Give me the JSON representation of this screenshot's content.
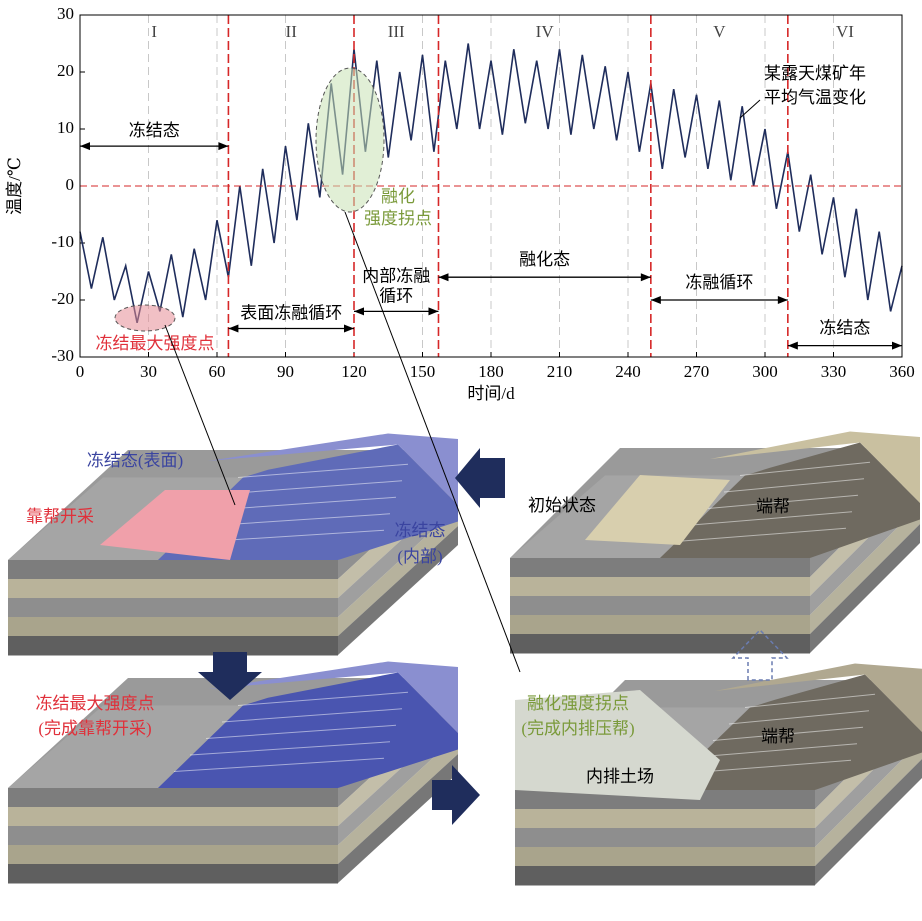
{
  "chart_data": {
    "type": "line",
    "y_label": "温度/℃",
    "x_label": "时间/d",
    "x": [
      0,
      5,
      10,
      15,
      20,
      25,
      30,
      35,
      40,
      45,
      50,
      55,
      60,
      65,
      70,
      75,
      80,
      85,
      90,
      95,
      100,
      105,
      110,
      115,
      120,
      125,
      130,
      135,
      140,
      145,
      150,
      155,
      160,
      165,
      170,
      175,
      180,
      185,
      190,
      195,
      200,
      205,
      210,
      215,
      220,
      225,
      230,
      235,
      240,
      245,
      250,
      255,
      260,
      265,
      270,
      275,
      280,
      285,
      290,
      295,
      300,
      305,
      310,
      315,
      320,
      325,
      330,
      335,
      340,
      345,
      350,
      355,
      360
    ],
    "series": [
      {
        "color": "#1f2d5c",
        "values": [
          -8,
          -18,
          -9,
          -20,
          -14,
          -24,
          -15,
          -22,
          -12,
          -23,
          -11,
          -20,
          -6,
          -16,
          0,
          -14,
          3,
          -10,
          7,
          -6,
          11,
          -2,
          18,
          2,
          24,
          6,
          22,
          5,
          20,
          8,
          23,
          6,
          22,
          10,
          25,
          10,
          22,
          9,
          24,
          11,
          22,
          10,
          24,
          9,
          23,
          10,
          21,
          8,
          20,
          6,
          18,
          3,
          17,
          5,
          16,
          3,
          15,
          1,
          14,
          0,
          10,
          -4,
          6,
          -8,
          2,
          -12,
          -2,
          -16,
          -4,
          -20,
          -8,
          -22,
          -14
        ]
      }
    ],
    "xlim": [
      0,
      360
    ],
    "ylim": [
      -30,
      30
    ],
    "xticks": [
      0,
      30,
      60,
      90,
      120,
      150,
      180,
      210,
      240,
      270,
      300,
      330,
      360
    ],
    "yticks": [
      -30,
      -20,
      -10,
      0,
      10,
      20,
      30
    ],
    "grid": "x",
    "reference_y": 0,
    "phase_boundaries": [
      65,
      120,
      157,
      250,
      310
    ],
    "phases": [
      "I",
      "II",
      "III",
      "IV",
      "V",
      "VI"
    ],
    "regions": [
      [
        "冻结态"
      ],
      [
        "表面冻融循环"
      ],
      [
        "内部冻融",
        "循环"
      ],
      [
        "融化态"
      ],
      [
        "冻融循环"
      ],
      [
        "冻结态"
      ]
    ],
    "annotations": {
      "series_label": [
        "某露天煤矿年",
        "平均气温变化"
      ],
      "thaw_point": [
        "融化",
        "强度拐点"
      ],
      "freeze_point": [
        "冻结最大强度点"
      ]
    }
  },
  "diagram": {
    "top_left": {
      "surface": "冻结态(表面)",
      "mining": "靠帮开采",
      "inner": [
        "冻结态",
        "(内部)"
      ]
    },
    "top_right": {
      "initial": "初始状态",
      "end_wall": "端帮"
    },
    "bottom_left": {
      "caption": [
        "冻结最大强度点",
        "(完成靠帮开采)"
      ]
    },
    "bottom_right": {
      "caption": [
        "融化强度拐点",
        "(完成内排压帮)"
      ],
      "end_wall": "端帮",
      "dump": "内排土场"
    }
  }
}
